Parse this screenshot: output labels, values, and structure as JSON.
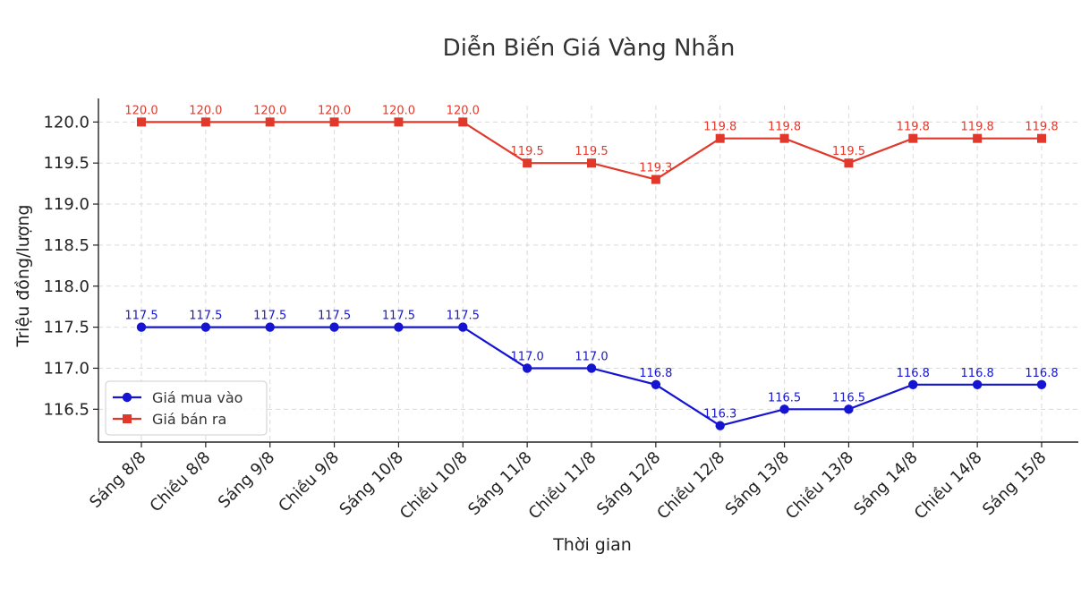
{
  "chart_data": {
    "type": "line",
    "title": "Diễn Biến Giá Vàng Nhẫn",
    "xlabel": "Thời gian",
    "ylabel": "Triệu đồng/lượng",
    "categories": [
      "Sáng 8/8",
      "Chiều 8/8",
      "Sáng 9/8",
      "Chiều 9/8",
      "Sáng 10/8",
      "Chiều 10/8",
      "Sáng 11/8",
      "Chiều 11/8",
      "Sáng 12/8",
      "Chiều 12/8",
      "Sáng 13/8",
      "Chiều 13/8",
      "Sáng 14/8",
      "Chiều 14/8",
      "Sáng 15/8"
    ],
    "ylim": [
      116.1,
      120.2
    ],
    "yticks": [
      "116.5",
      "117.0",
      "117.5",
      "118.0",
      "118.5",
      "119.0",
      "119.5",
      "120.0"
    ],
    "grid": true,
    "legend_position": "lower-left",
    "series": [
      {
        "name": "Giá mua vào",
        "color": "#1414d2",
        "marker": "circle",
        "values": [
          117.5,
          117.5,
          117.5,
          117.5,
          117.5,
          117.5,
          117.0,
          117.0,
          116.8,
          116.3,
          116.5,
          116.5,
          116.8,
          116.8,
          116.8
        ],
        "labels": [
          "117.5",
          "117.5",
          "117.5",
          "117.5",
          "117.5",
          "117.5",
          "117.0",
          "117.0",
          "116.8",
          "116.3",
          "116.5",
          "116.5",
          "116.8",
          "116.8",
          "116.8"
        ]
      },
      {
        "name": "Giá bán ra",
        "color": "#e0392b",
        "marker": "square",
        "values": [
          120.0,
          120.0,
          120.0,
          120.0,
          120.0,
          120.0,
          119.5,
          119.5,
          119.3,
          119.8,
          119.8,
          119.5,
          119.8,
          119.8,
          119.8
        ],
        "labels": [
          "120.0",
          "120.0",
          "120.0",
          "120.0",
          "120.0",
          "120.0",
          "119.5",
          "119.5",
          "119.3",
          "119.8",
          "119.8",
          "119.5",
          "119.8",
          "119.8",
          "119.8"
        ]
      }
    ]
  }
}
